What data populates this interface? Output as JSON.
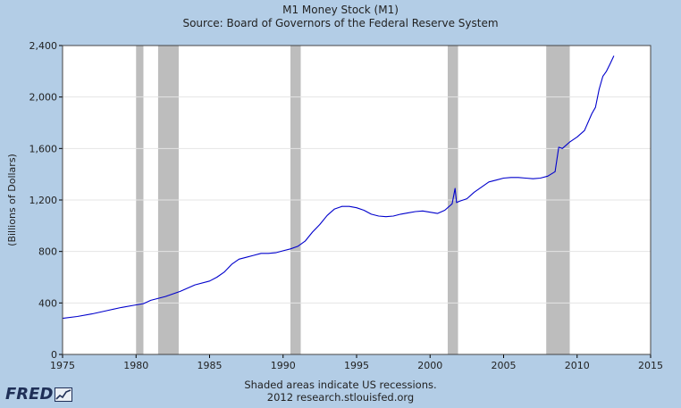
{
  "chart_data": {
    "type": "line",
    "title": "M1 Money Stock (M1)",
    "subtitle": "Source: Board of Governors of the Federal Reserve System",
    "xlabel": "",
    "ylabel": "(Billions of Dollars)",
    "xlim": [
      1975,
      2015
    ],
    "ylim": [
      0,
      2400
    ],
    "x_ticks": [
      "1975",
      "1980",
      "1985",
      "1990",
      "1995",
      "2000",
      "2005",
      "2010",
      "2015"
    ],
    "y_ticks": [
      "0",
      "400",
      "800",
      "1,200",
      "1,600",
      "2,000",
      "2,400"
    ],
    "grid": true,
    "line_color": "#0000cc",
    "recession_color": "#bdbdbd",
    "recessions": [
      [
        1980.0,
        1980.5
      ],
      [
        1981.5,
        1982.9
      ],
      [
        1990.5,
        1991.2
      ],
      [
        2001.2,
        2001.9
      ],
      [
        2007.9,
        2009.5
      ]
    ],
    "series": [
      {
        "x": [
          1975.0,
          1976.0,
          1977.0,
          1978.0,
          1979.0,
          1980.0,
          1980.5,
          1981.0,
          1982.0,
          1983.0,
          1984.0,
          1985.0,
          1985.5,
          1986.0,
          1986.5,
          1987.0,
          1987.5,
          1988.0,
          1988.5,
          1989.0,
          1989.5,
          1990.0,
          1990.5,
          1991.0,
          1991.5,
          1992.0,
          1992.5,
          1993.0,
          1993.5,
          1994.0,
          1994.5,
          1995.0,
          1995.5,
          1996.0,
          1996.5,
          1997.0,
          1997.5,
          1998.0,
          1998.5,
          1999.0,
          1999.5,
          2000.0,
          2000.5,
          2001.0,
          2001.5,
          2001.7,
          2001.8,
          2002.0,
          2002.5,
          2003.0,
          2003.5,
          2004.0,
          2004.5,
          2005.0,
          2005.5,
          2006.0,
          2006.5,
          2007.0,
          2007.5,
          2008.0,
          2008.5,
          2008.75,
          2009.0,
          2009.5,
          2010.0,
          2010.5,
          2011.0,
          2011.25,
          2011.5,
          2011.75,
          2012.0,
          2012.25,
          2012.5
        ],
        "values": [
          280,
          295,
          315,
          340,
          365,
          385,
          395,
          420,
          450,
          490,
          540,
          570,
          600,
          640,
          700,
          740,
          755,
          770,
          785,
          785,
          790,
          805,
          820,
          840,
          880,
          950,
          1010,
          1080,
          1130,
          1150,
          1150,
          1140,
          1120,
          1090,
          1075,
          1070,
          1075,
          1090,
          1100,
          1110,
          1115,
          1105,
          1095,
          1120,
          1170,
          1290,
          1180,
          1190,
          1210,
          1260,
          1300,
          1340,
          1355,
          1370,
          1375,
          1375,
          1370,
          1365,
          1370,
          1385,
          1420,
          1610,
          1600,
          1650,
          1690,
          1740,
          1870,
          1920,
          2060,
          2160,
          2200,
          2260,
          2320
        ]
      }
    ]
  },
  "footer": {
    "line1": "Shaded areas indicate US recessions.",
    "line2": "2012 research.stlouisfed.org"
  },
  "logo": {
    "text": "FRED",
    "icon": "line-chart-icon"
  }
}
